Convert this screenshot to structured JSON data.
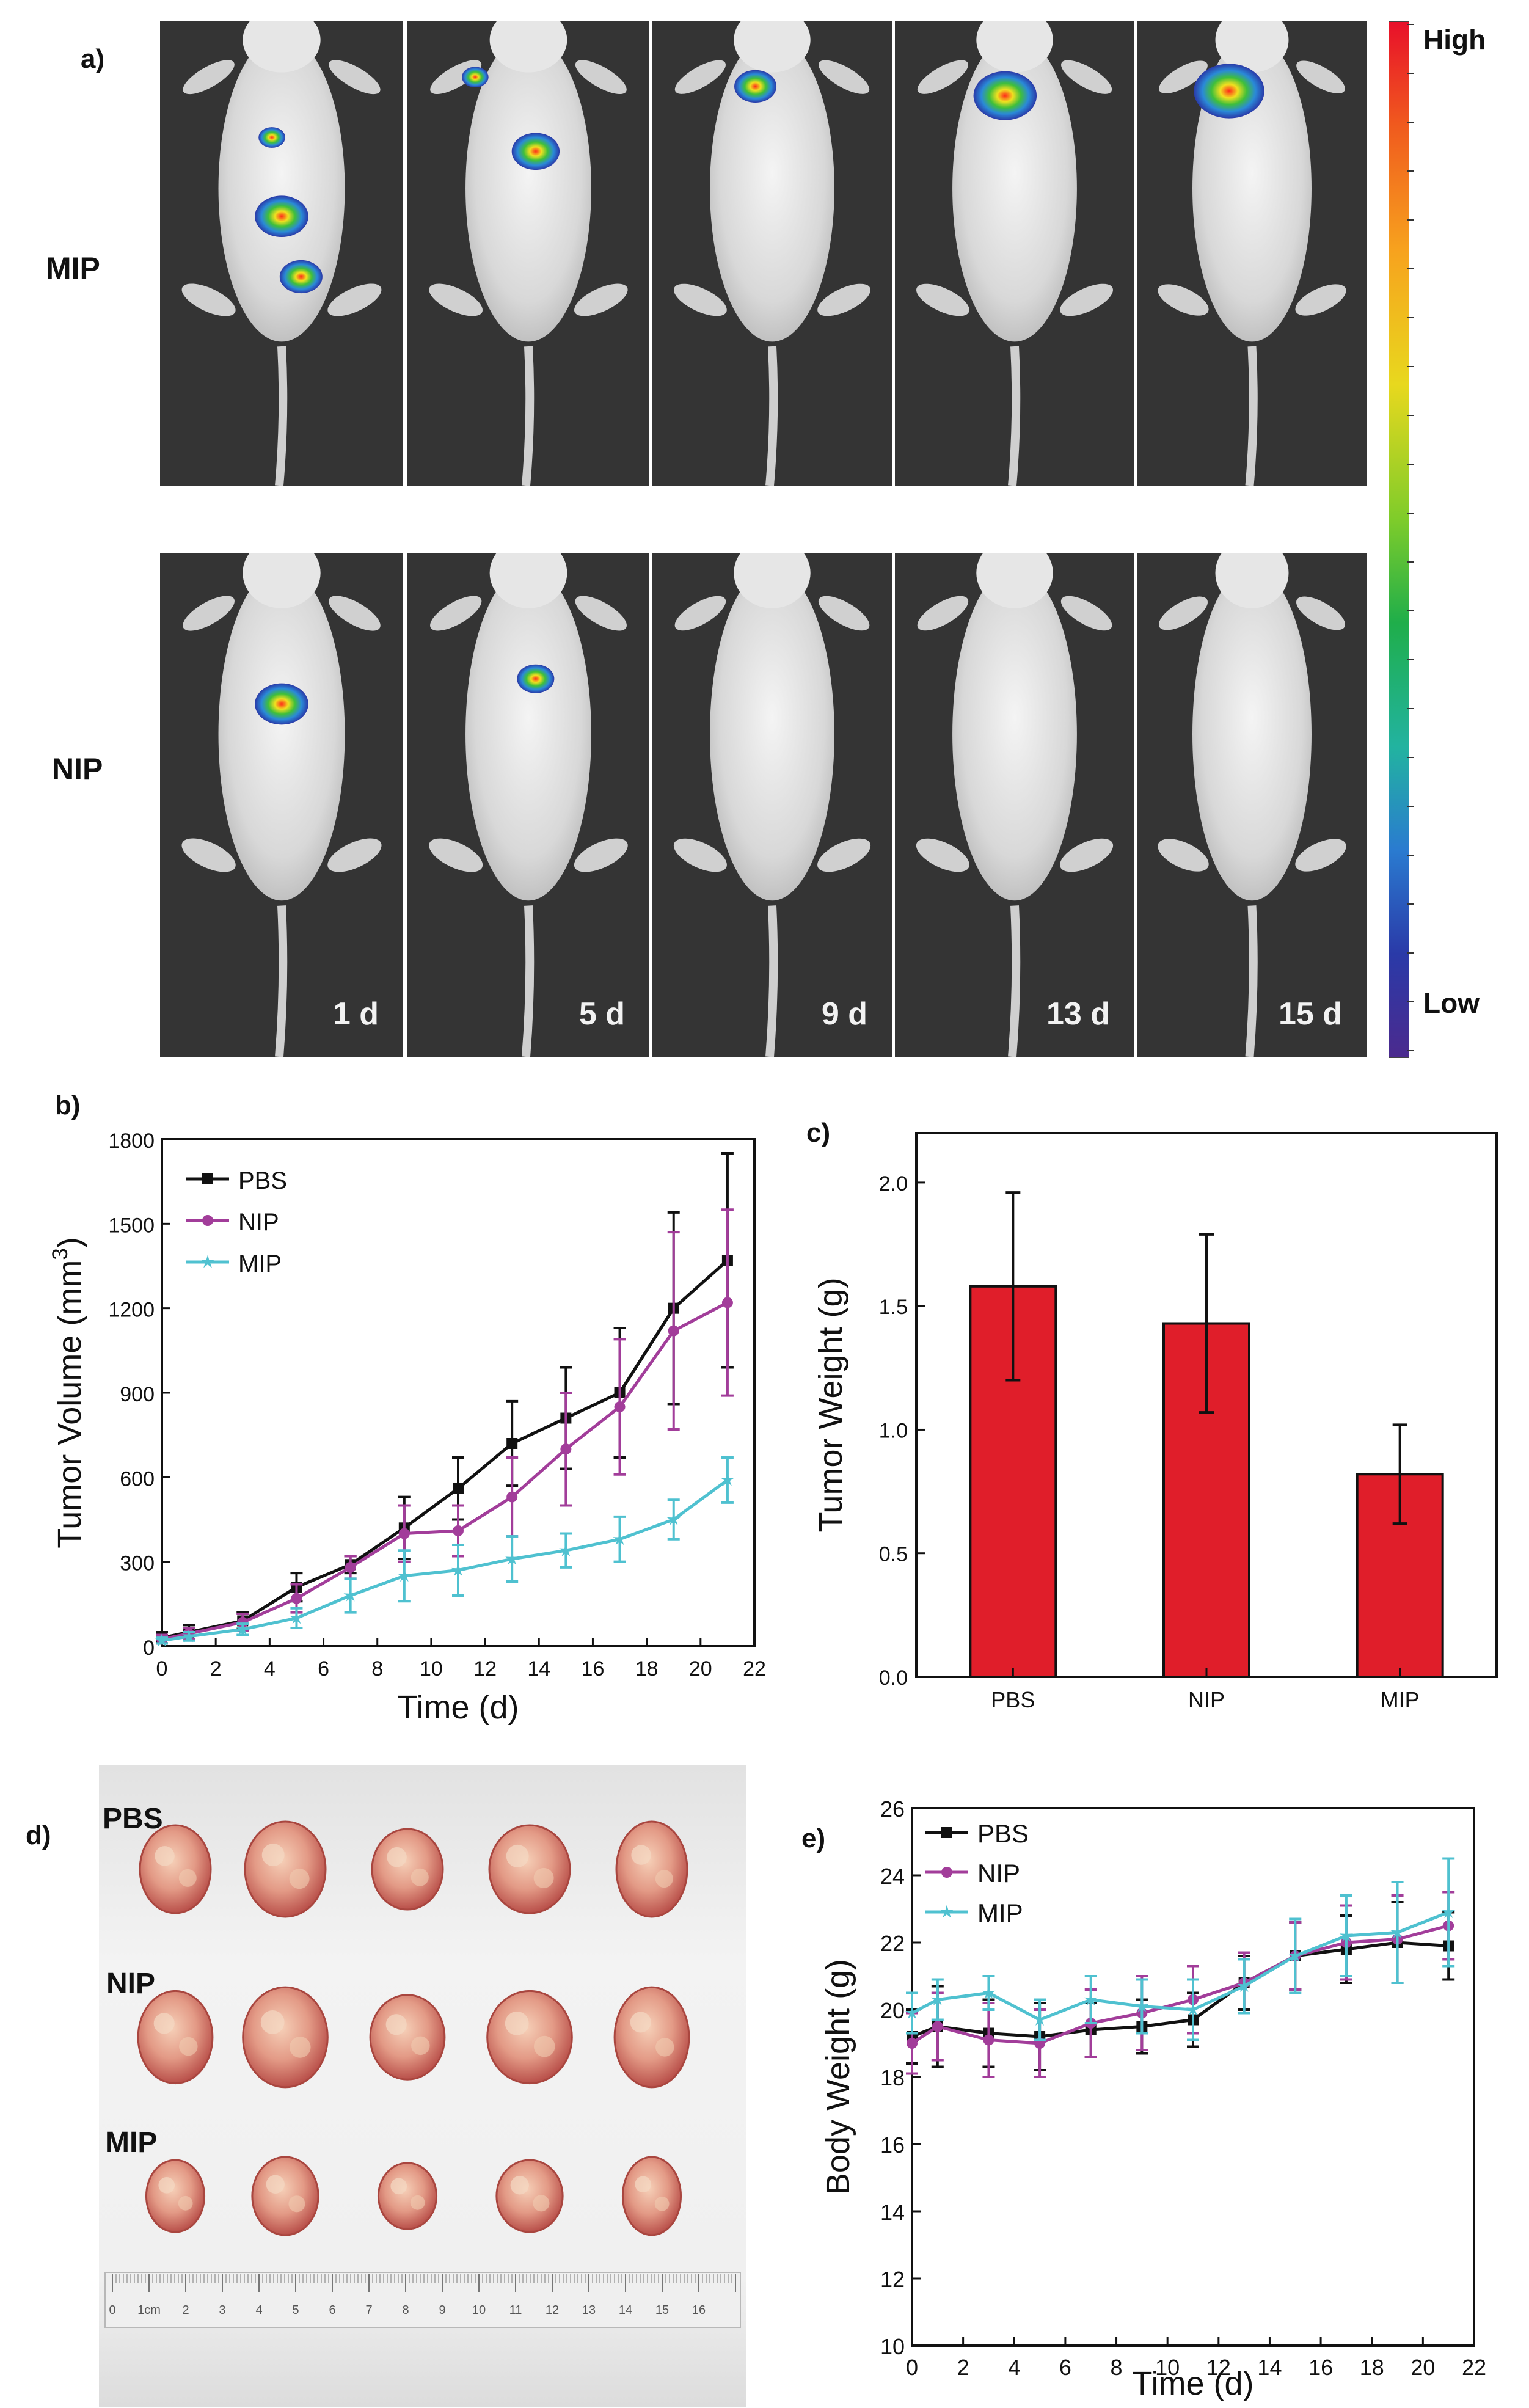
{
  "panel_a": {
    "label": "a)",
    "rows": [
      "MIP",
      "NIP"
    ],
    "days": [
      "1 d",
      "5 d",
      "9 d",
      "13 d",
      "15 d"
    ],
    "colorbar": {
      "high": "High",
      "low": "Low"
    }
  },
  "panel_d": {
    "label": "d)",
    "groups": [
      "PBS",
      "NIP",
      "MIP"
    ],
    "ruler_ticks": [
      "0",
      "1cm",
      "2",
      "3",
      "4",
      "5",
      "6",
      "7",
      "8",
      "9",
      "10",
      "11",
      "12",
      "13",
      "14",
      "15",
      "16"
    ]
  },
  "chart_data": [
    {
      "panel": "b)",
      "type": "line",
      "xlabel": "Time (d)",
      "ylabel": "Tumor Volume (mm",
      "ylabel_sup": "3",
      "ylabel_close": ")",
      "xlim": [
        0,
        22
      ],
      "ylim": [
        0,
        1800
      ],
      "xticks": [
        0,
        2,
        4,
        6,
        8,
        10,
        12,
        14,
        16,
        18,
        20,
        22
      ],
      "yticks": [
        0,
        300,
        600,
        900,
        1200,
        1500,
        1800
      ],
      "legend": "top-left",
      "x": [
        0,
        1,
        3,
        5,
        7,
        9,
        11,
        13,
        15,
        17,
        19,
        21
      ],
      "series": [
        {
          "name": "PBS",
          "color": "#111111",
          "marker": "square",
          "values": [
            30,
            50,
            90,
            210,
            290,
            420,
            560,
            720,
            810,
            900,
            1200,
            1370
          ],
          "errors": [
            20,
            25,
            30,
            50,
            30,
            110,
            110,
            150,
            180,
            230,
            340,
            380
          ]
        },
        {
          "name": "NIP",
          "color": "#a23d9a",
          "marker": "circle",
          "values": [
            25,
            45,
            85,
            170,
            280,
            400,
            410,
            530,
            700,
            850,
            1120,
            1220
          ],
          "errors": [
            15,
            20,
            30,
            50,
            40,
            100,
            90,
            140,
            200,
            240,
            350,
            330
          ]
        },
        {
          "name": "MIP",
          "color": "#4fc1d0",
          "marker": "star",
          "values": [
            20,
            35,
            60,
            100,
            180,
            250,
            270,
            310,
            340,
            380,
            450,
            590
          ],
          "errors": [
            10,
            15,
            20,
            35,
            60,
            90,
            90,
            80,
            60,
            80,
            70,
            80
          ]
        }
      ]
    },
    {
      "panel": "c)",
      "type": "bar",
      "ylabel": "Tumor Weight (g)",
      "categories": [
        "PBS",
        "NIP",
        "MIP"
      ],
      "values": [
        1.58,
        1.43,
        0.82
      ],
      "errors": [
        0.38,
        0.36,
        0.2
      ],
      "ylim": [
        0,
        2.2
      ],
      "yticks": [
        "0.0",
        "0.5",
        "1.0",
        "1.5",
        "2.0"
      ],
      "bar_color": "#e01e2a"
    },
    {
      "panel": "e)",
      "type": "line",
      "xlabel": "Time (d)",
      "ylabel": "Body Weight (g)",
      "xlim": [
        0,
        22
      ],
      "ylim": [
        10,
        26
      ],
      "xticks": [
        0,
        2,
        4,
        6,
        8,
        10,
        12,
        14,
        16,
        18,
        20,
        22
      ],
      "yticks": [
        10,
        12,
        14,
        16,
        18,
        20,
        22,
        24,
        26
      ],
      "legend": "top-left",
      "x": [
        0,
        1,
        3,
        5,
        7,
        9,
        11,
        13,
        15,
        17,
        19,
        21
      ],
      "series": [
        {
          "name": "PBS",
          "color": "#111111",
          "marker": "square",
          "values": [
            19.2,
            19.5,
            19.3,
            19.2,
            19.4,
            19.5,
            19.7,
            20.8,
            21.6,
            21.8,
            22.0,
            21.9
          ],
          "errors": [
            0.8,
            1.2,
            1.0,
            1.0,
            0.8,
            0.8,
            0.8,
            0.8,
            1.0,
            1.0,
            1.2,
            1.0
          ]
        },
        {
          "name": "NIP",
          "color": "#a23d9a",
          "marker": "circle",
          "values": [
            19.0,
            19.5,
            19.1,
            19.0,
            19.6,
            19.9,
            20.3,
            20.8,
            21.6,
            22.0,
            22.1,
            22.5
          ],
          "errors": [
            0.9,
            1.0,
            1.1,
            1.0,
            1.0,
            1.1,
            1.0,
            0.9,
            1.0,
            1.1,
            1.3,
            1.0
          ]
        },
        {
          "name": "MIP",
          "color": "#4fc1d0",
          "marker": "star",
          "values": [
            19.9,
            20.3,
            20.5,
            19.7,
            20.3,
            20.1,
            20.0,
            20.7,
            21.6,
            22.2,
            22.3,
            22.9
          ],
          "errors": [
            0.6,
            0.6,
            0.5,
            0.6,
            0.7,
            0.8,
            0.9,
            0.8,
            1.1,
            1.2,
            1.5,
            1.6
          ]
        }
      ]
    }
  ]
}
